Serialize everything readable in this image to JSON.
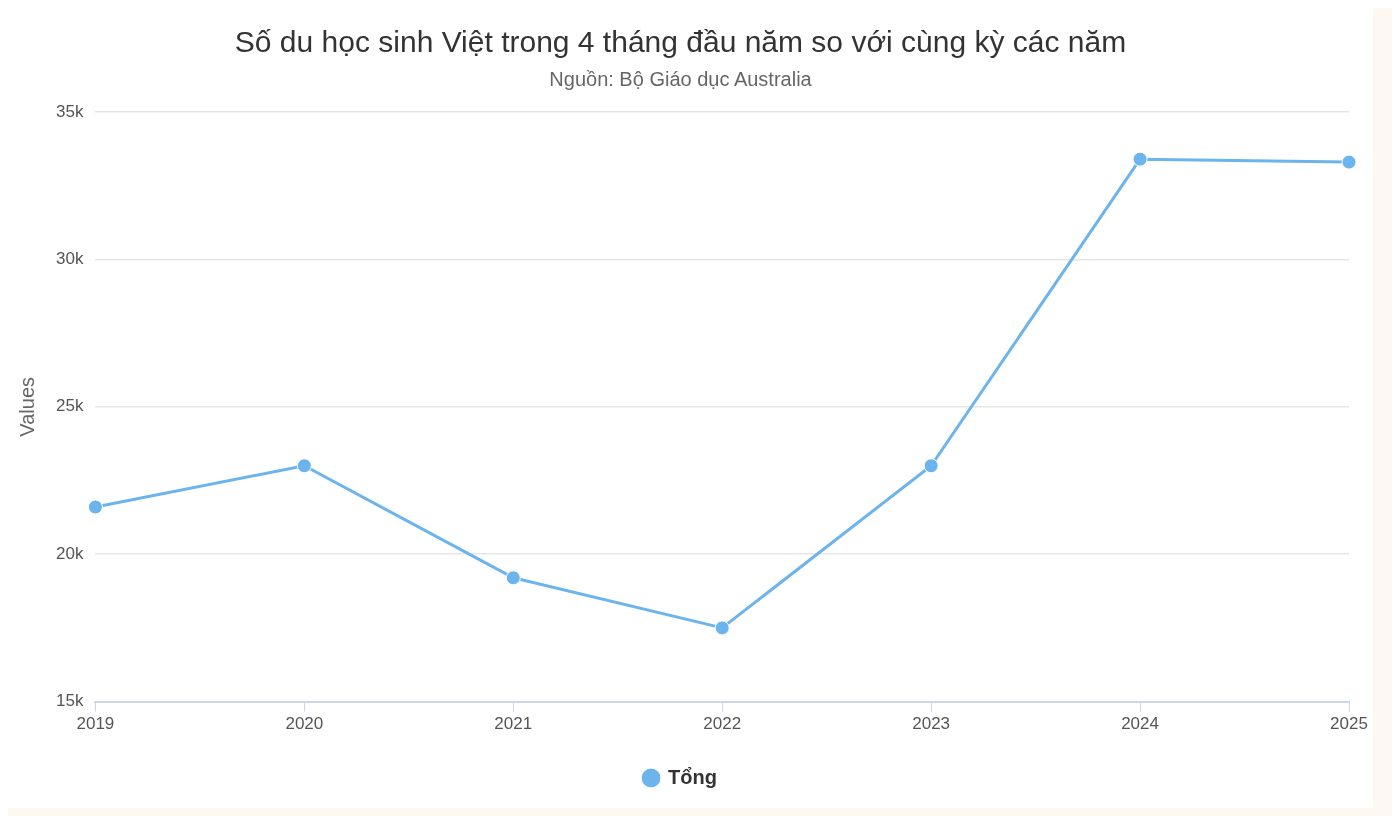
{
  "chart_data": {
    "type": "line",
    "title": "Số du học sinh Việt trong 4 tháng đầu năm so với cùng kỳ các năm",
    "subtitle": "Nguồn: Bộ Giáo dục Australia",
    "ylabel": "Values",
    "categories": [
      "2019",
      "2020",
      "2021",
      "2022",
      "2023",
      "2024",
      "2025"
    ],
    "series": [
      {
        "name": "Tổng",
        "color": "#6cb4ee",
        "values": [
          21600,
          23000,
          19200,
          17500,
          23000,
          33400,
          33300
        ]
      }
    ],
    "ylim": [
      15000,
      35000
    ],
    "yticks": [
      {
        "value": 15000,
        "label": "15k"
      },
      {
        "value": 20000,
        "label": "20k"
      },
      {
        "value": 25000,
        "label": "25k"
      },
      {
        "value": 30000,
        "label": "30k"
      },
      {
        "value": 35000,
        "label": "35k"
      }
    ],
    "grid": "y",
    "legend": "bottom",
    "marker": "circle",
    "line_style": "solid"
  }
}
